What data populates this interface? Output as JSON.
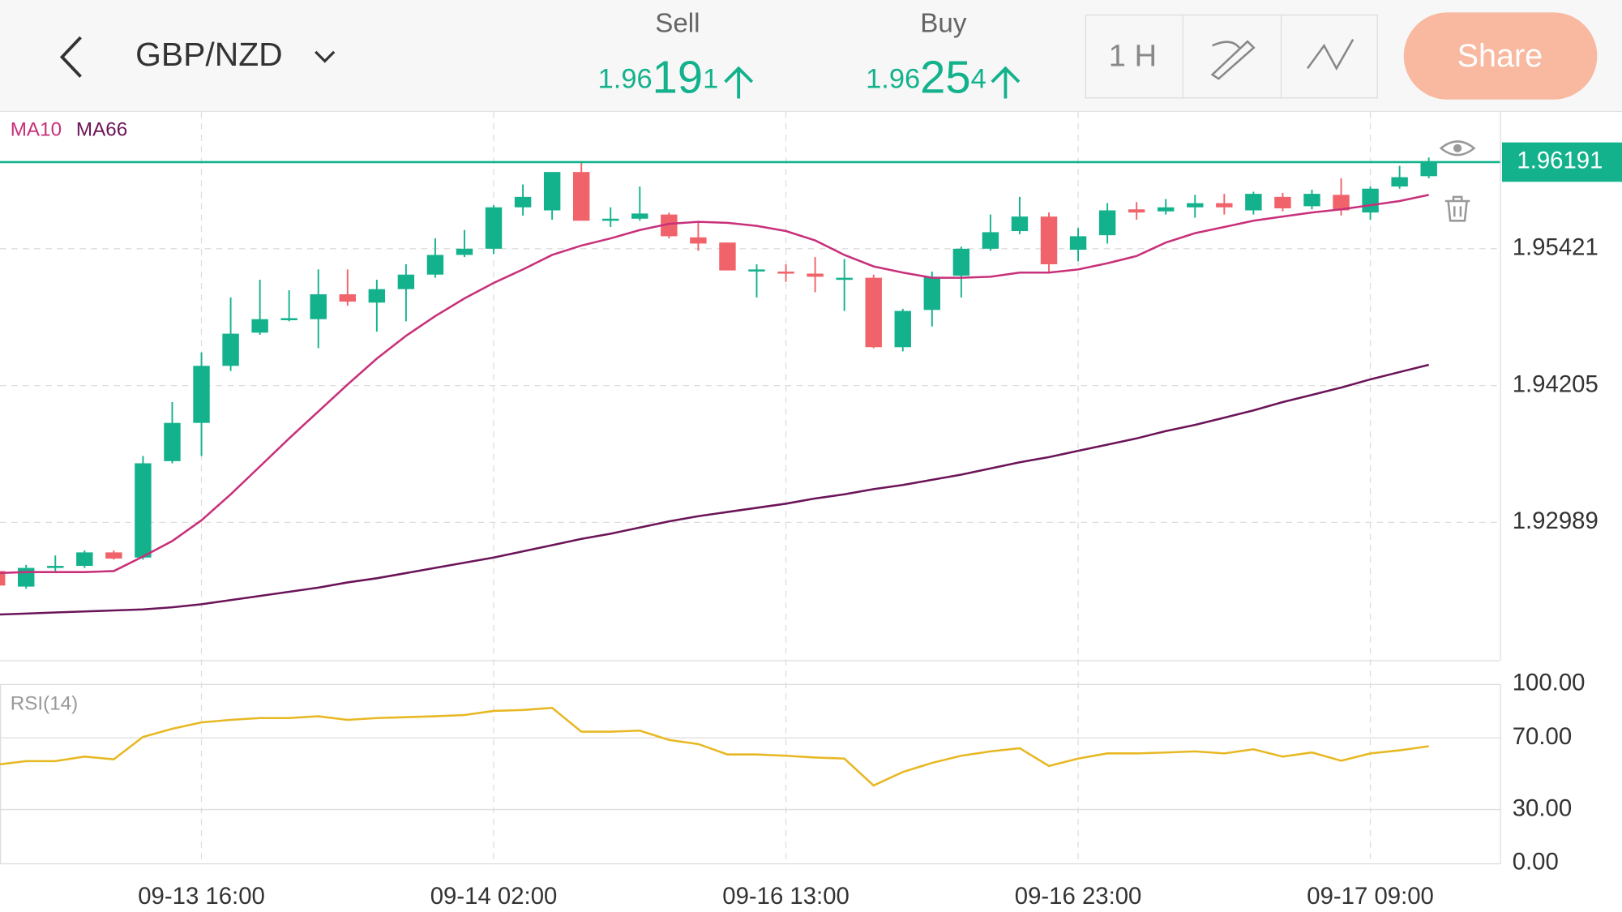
{
  "header": {
    "pair": "GBP/NZD",
    "sell": {
      "label": "Sell",
      "parts": [
        "1.96",
        "19",
        "1"
      ]
    },
    "buy": {
      "label": "Buy",
      "parts": [
        "1.96",
        "25",
        "4"
      ]
    },
    "interval": "1 H",
    "share": "Share"
  },
  "chart_data": {
    "type": "candlestick",
    "categories": [
      null,
      null,
      null,
      null,
      null,
      null,
      null,
      "09-13 16:00",
      null,
      null,
      null,
      null,
      null,
      null,
      null,
      null,
      null,
      "09-14 02:00",
      null,
      null,
      null,
      null,
      null,
      null,
      null,
      null,
      null,
      "09-16 13:00",
      null,
      null,
      null,
      null,
      null,
      null,
      null,
      null,
      null,
      "09-16 23:00",
      null,
      null,
      null,
      null,
      null,
      null,
      null,
      null,
      null,
      "09-17 09:00",
      null,
      null
    ],
    "open": [
      1.92556,
      1.92418,
      1.92584,
      1.92602,
      1.92722,
      1.92676,
      1.93533,
      1.93873,
      1.9438,
      1.94675,
      1.94795,
      1.94795,
      1.95016,
      1.94942,
      1.95062,
      1.95191,
      1.95366,
      1.95421,
      1.95789,
      1.95762,
      1.96103,
      1.9567,
      1.95688,
      1.95725,
      1.95522,
      1.95476,
      1.95228,
      1.95218,
      1.952,
      1.95154,
      1.95163,
      1.94546,
      1.94877,
      1.95181,
      1.95421,
      1.95578,
      1.95707,
      1.95412,
      1.95541,
      1.95771,
      1.95753,
      1.95789,
      1.95826,
      1.95762,
      1.95882,
      1.95799,
      1.959,
      1.95743,
      1.95974,
      1.96066
    ],
    "high": [
      1.92584,
      1.92611,
      1.92694,
      1.9274,
      1.9274,
      1.93579,
      1.94058,
      1.945,
      1.94988,
      1.95145,
      1.95052,
      1.95237,
      1.95237,
      1.95145,
      1.95283,
      1.95513,
      1.95587,
      1.95808,
      1.95992,
      1.96103,
      1.96186,
      1.95789,
      1.95974,
      1.95743,
      1.9566,
      1.95476,
      1.95283,
      1.95283,
      1.95347,
      1.95329,
      1.95191,
      1.94887,
      1.95218,
      1.95439,
      1.95725,
      1.95882,
      1.95743,
      1.95605,
      1.95826,
      1.95836,
      1.95863,
      1.959,
      1.95909,
      1.95928,
      1.95918,
      1.95946,
      1.96047,
      1.95974,
      1.96158,
      1.96232
    ],
    "low": [
      1.92409,
      1.92399,
      1.92556,
      1.92584,
      1.92657,
      1.92657,
      1.93514,
      1.93579,
      1.94334,
      1.94656,
      1.94776,
      1.94537,
      1.94914,
      1.94684,
      1.94776,
      1.95163,
      1.95347,
      1.95375,
      1.95716,
      1.95679,
      1.9567,
      1.95614,
      1.9567,
      1.95513,
      1.95403,
      1.95228,
      1.94988,
      1.95126,
      1.95034,
      1.94868,
      1.94537,
      1.94509,
      1.9473,
      1.94988,
      1.95403,
      1.9555,
      1.95218,
      1.9531,
      1.95467,
      1.95679,
      1.95725,
      1.95697,
      1.95725,
      1.95725,
      1.95753,
      1.95771,
      1.95716,
      1.95679,
      1.95955,
      1.96047
    ],
    "close": [
      1.92427,
      1.92584,
      1.92602,
      1.92722,
      1.92667,
      1.93514,
      1.93873,
      1.9438,
      1.94666,
      1.94795,
      1.94804,
      1.95016,
      1.94951,
      1.95062,
      1.95191,
      1.95366,
      1.95421,
      1.95789,
      1.95882,
      1.96103,
      1.9567,
      1.95688,
      1.95734,
      1.95532,
      1.95467,
      1.95228,
      1.95237,
      1.952,
      1.95172,
      1.95163,
      1.94546,
      1.94868,
      1.95172,
      1.95421,
      1.95568,
      1.95707,
      1.95283,
      1.95532,
      1.95762,
      1.95743,
      1.95789,
      1.95826,
      1.95789,
      1.95909,
      1.9578,
      1.95909,
      1.95762,
      1.95955,
      1.96057,
      1.96191
    ],
    "up_color": "#13b28d",
    "down_color": "#f0636a",
    "series": [
      {
        "name": "MA10",
        "color": "#c8307a",
        "values": [
          1.92538,
          1.92547,
          1.92547,
          1.92547,
          1.92556,
          1.92685,
          1.92823,
          1.93007,
          1.93238,
          1.93486,
          1.93735,
          1.93975,
          1.94214,
          1.94444,
          1.94647,
          1.94822,
          1.94979,
          1.95117,
          1.95237,
          1.95366,
          1.95449,
          1.95513,
          1.95587,
          1.95642,
          1.9566,
          1.95651,
          1.95624,
          1.95578,
          1.95495,
          1.95366,
          1.95264,
          1.95209,
          1.95163,
          1.95163,
          1.95172,
          1.95209,
          1.95209,
          1.95237,
          1.95292,
          1.95356,
          1.95476,
          1.95559,
          1.95614,
          1.9567,
          1.95707,
          1.95743,
          1.95771,
          1.95808,
          1.95845,
          1.959
        ]
      },
      {
        "name": "MA66",
        "color": "#6b1458",
        "values": [
          1.92169,
          1.92178,
          1.92188,
          1.92197,
          1.92206,
          1.92215,
          1.92234,
          1.92261,
          1.92298,
          1.92335,
          1.92372,
          1.92409,
          1.92455,
          1.92492,
          1.92538,
          1.92584,
          1.9263,
          1.92676,
          1.92731,
          1.92786,
          1.92842,
          1.92888,
          1.92943,
          1.92998,
          1.93044,
          1.93081,
          1.93118,
          1.93155,
          1.93201,
          1.93238,
          1.93284,
          1.93321,
          1.93367,
          1.93413,
          1.93468,
          1.93523,
          1.93569,
          1.93625,
          1.9368,
          1.93735,
          1.938,
          1.93855,
          1.93919,
          1.93984,
          1.94058,
          1.94122,
          1.94187,
          1.9426,
          1.94325,
          1.94389
        ]
      }
    ],
    "ylim": [
      1.91764,
      1.96637
    ],
    "yticks": [
      1.95421,
      1.94205,
      1.92989
    ],
    "grid": true,
    "last_price": 1.96191,
    "last_color": "#13b28d",
    "rsi": {
      "name": "RSI(14)",
      "color": "#e8b823",
      "ylim": [
        0,
        100
      ],
      "yticks": [
        {
          "value": 100,
          "label": "100.00"
        },
        {
          "value": 70,
          "label": "70.00"
        },
        {
          "value": 30,
          "label": "30.00"
        },
        {
          "value": 0,
          "label": "0.00"
        }
      ],
      "values": [
        55.0,
        57.0,
        57.0,
        59.5,
        58.0,
        70.5,
        75.0,
        78.6,
        80.0,
        81.0,
        81.0,
        82.0,
        80.0,
        81.0,
        81.5,
        82.0,
        82.7,
        85.0,
        85.5,
        86.7,
        73.4,
        73.4,
        74.0,
        68.8,
        66.5,
        60.7,
        60.7,
        60.0,
        59.0,
        58.4,
        43.4,
        50.9,
        56.0,
        60.0,
        62.4,
        64.2,
        54.3,
        58.4,
        61.3,
        61.3,
        61.8,
        62.4,
        61.3,
        63.6,
        59.5,
        61.8,
        57.2,
        61.3,
        63.0,
        65.3
      ]
    }
  }
}
